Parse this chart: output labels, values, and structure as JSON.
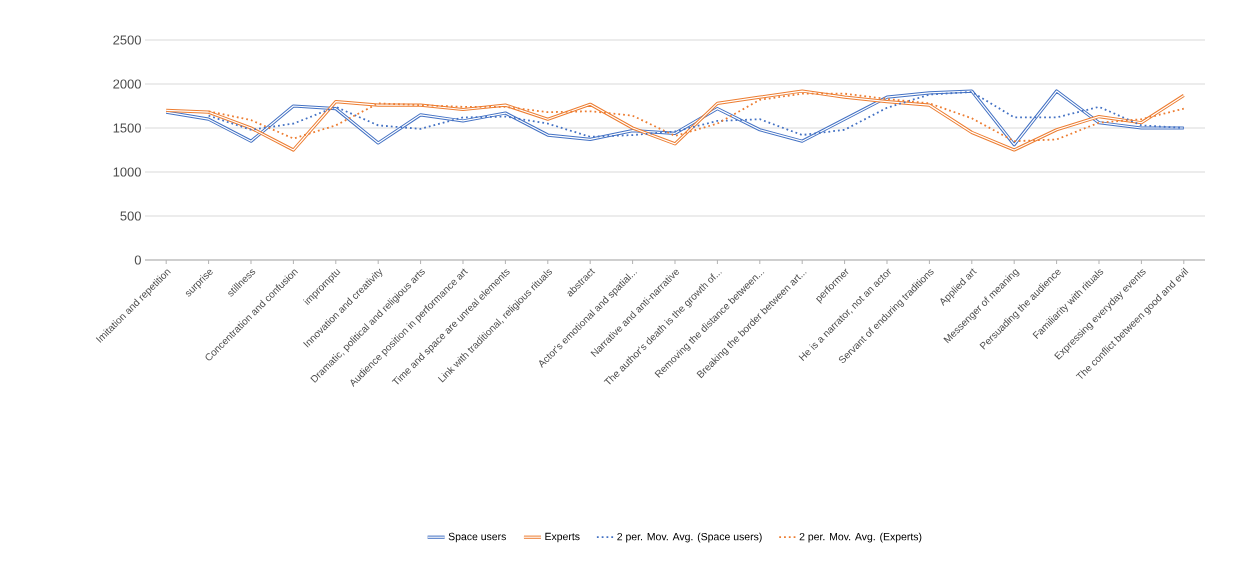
{
  "chart_data": {
    "type": "line",
    "categories": [
      "Imitation and repetition",
      "surprise",
      "stillness",
      "Concentration and confusion",
      "impromptu",
      "Innovation and creativity",
      "Dramatic, political and religious arts",
      "Audience position in performance art",
      "Time and space are unreal elements",
      "Link with traditional, religious rituals",
      "abstract",
      "Actor's emotional and spatial...",
      "Narrative and anti-narrative",
      "The author's death is the growth of...",
      "Removing the distance between...",
      "Breaking the border between art...",
      "performer",
      "He is a narrator, not an actor",
      "Servant of enduring traditions",
      "Applied art",
      "Messenger of meaning",
      "Persuading the audience",
      "Familiarity with rituals",
      "Expressing everyday events",
      "The conflict between good and evil"
    ],
    "series": [
      {
        "name": "Space users",
        "color": "#4472c4",
        "line_style": "solid",
        "values": [
          1680,
          1600,
          1350,
          1750,
          1720,
          1330,
          1650,
          1580,
          1670,
          1420,
          1370,
          1470,
          1440,
          1720,
          1480,
          1350,
          1600,
          1850,
          1900,
          1920,
          1310,
          1920,
          1560,
          1500,
          1500
        ]
      },
      {
        "name": "Experts",
        "color": "#ed7d31",
        "line_style": "solid",
        "values": [
          1700,
          1680,
          1500,
          1250,
          1800,
          1760,
          1760,
          1710,
          1760,
          1600,
          1770,
          1500,
          1320,
          1780,
          1850,
          1920,
          1850,
          1800,
          1760,
          1450,
          1250,
          1480,
          1630,
          1560,
          1870
        ]
      },
      {
        "name": "2 per. Mov. Avg. (Space users)",
        "color": "#4472c4",
        "line_style": "dotted",
        "values": [
          null,
          1640,
          1480,
          1550,
          1740,
          1530,
          1490,
          1620,
          1630,
          1550,
          1400,
          1420,
          1460,
          1580,
          1600,
          1420,
          1480,
          1730,
          1880,
          1910,
          1620,
          1620,
          1740,
          1530,
          1500
        ]
      },
      {
        "name": "2 per. Mov. Avg. (Experts)",
        "color": "#ed7d31",
        "line_style": "dotted",
        "values": [
          null,
          1690,
          1590,
          1380,
          1530,
          1780,
          1760,
          1740,
          1740,
          1680,
          1690,
          1640,
          1410,
          1550,
          1820,
          1890,
          1890,
          1830,
          1780,
          1610,
          1350,
          1370,
          1560,
          1600,
          1720
        ]
      }
    ],
    "ylim": [
      0,
      2500
    ],
    "yticks": [
      0,
      500,
      1000,
      1500,
      2000,
      2500
    ],
    "grid": "y",
    "legend": "bottom",
    "marker": "none"
  }
}
